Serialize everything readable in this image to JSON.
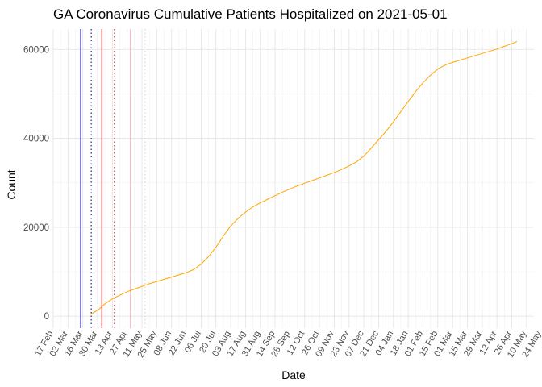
{
  "chart_data": {
    "type": "line",
    "title": "GA Coronavirus Cumulative Patients Hospitalized on 2021-05-01",
    "xlabel": "Date",
    "ylabel": "Count",
    "x_range": [
      "2020-02-17",
      "2021-05-17"
    ],
    "ylim": [
      -2700,
      64600
    ],
    "y_ticks": [
      0,
      20000,
      40000,
      60000
    ],
    "x_tick_dates": [
      "2020-02-17",
      "2020-03-02",
      "2020-03-16",
      "2020-03-30",
      "2020-04-13",
      "2020-04-27",
      "2020-05-11",
      "2020-05-25",
      "2020-06-08",
      "2020-06-22",
      "2020-07-06",
      "2020-07-20",
      "2020-08-03",
      "2020-08-17",
      "2020-08-31",
      "2020-09-14",
      "2020-09-28",
      "2020-10-12",
      "2020-10-26",
      "2020-11-09",
      "2020-11-23",
      "2020-12-07",
      "2020-12-21",
      "2021-01-04",
      "2021-01-18",
      "2021-02-01",
      "2021-02-15",
      "2021-03-01",
      "2021-03-15",
      "2021-03-29",
      "2021-04-12",
      "2021-04-26",
      "2021-05-10",
      "2021-05-24"
    ],
    "x_tick_labels": [
      "17 Feb",
      "02 Mar",
      "16 Mar",
      "30 Mar",
      "13 Apr",
      "27 Apr",
      "11 May",
      "25 May",
      "08 Jun",
      "22 Jun",
      "06 Jul",
      "20 Jul",
      "03 Aug",
      "17 Aug",
      "31 Aug",
      "14 Sep",
      "28 Sep",
      "12 Oct",
      "26 Oct",
      "09 Nov",
      "23 Nov",
      "07 Dec",
      "21 Dec",
      "04 Jan",
      "18 Jan",
      "01 Feb",
      "15 Feb",
      "01 Mar",
      "15 Mar",
      "29 Mar",
      "12 Apr",
      "26 Apr",
      "10 May",
      "24 May"
    ],
    "grid": true,
    "vlines": [
      {
        "date": "2020-03-14",
        "color": "#0000cd",
        "style": "solid"
      },
      {
        "date": "2020-03-24",
        "color": "#191970",
        "style": "dotted"
      },
      {
        "date": "2020-04-03",
        "color": "#cc0000",
        "style": "solid"
      },
      {
        "date": "2020-04-15",
        "color": "#8b0000",
        "style": "dotted"
      },
      {
        "date": "2020-04-30",
        "color": "#ffb6c1",
        "style": "solid"
      },
      {
        "date": "2020-05-14",
        "color": "#d3d3d3",
        "style": "dotted"
      }
    ],
    "series": [
      {
        "color": "#ffa500",
        "points": [
          [
            "2020-03-24",
            500
          ],
          [
            "2020-03-27",
            900
          ],
          [
            "2020-03-31",
            1500
          ],
          [
            "2020-04-03",
            2200
          ],
          [
            "2020-04-08",
            3100
          ],
          [
            "2020-04-13",
            3900
          ],
          [
            "2020-04-20",
            4700
          ],
          [
            "2020-04-27",
            5500
          ],
          [
            "2020-05-04",
            6100
          ],
          [
            "2020-05-11",
            6700
          ],
          [
            "2020-05-18",
            7300
          ],
          [
            "2020-05-25",
            7800
          ],
          [
            "2020-06-01",
            8300
          ],
          [
            "2020-06-08",
            8800
          ],
          [
            "2020-06-15",
            9300
          ],
          [
            "2020-06-22",
            9800
          ],
          [
            "2020-06-29",
            10500
          ],
          [
            "2020-07-06",
            11700
          ],
          [
            "2020-07-13",
            13400
          ],
          [
            "2020-07-20",
            15500
          ],
          [
            "2020-07-27",
            18000
          ],
          [
            "2020-08-03",
            20300
          ],
          [
            "2020-08-10",
            22000
          ],
          [
            "2020-08-17",
            23400
          ],
          [
            "2020-08-24",
            24600
          ],
          [
            "2020-08-31",
            25500
          ],
          [
            "2020-09-07",
            26300
          ],
          [
            "2020-09-14",
            27100
          ],
          [
            "2020-09-21",
            27900
          ],
          [
            "2020-09-28",
            28600
          ],
          [
            "2020-10-05",
            29300
          ],
          [
            "2020-10-12",
            29900
          ],
          [
            "2020-10-19",
            30500
          ],
          [
            "2020-10-26",
            31100
          ],
          [
            "2020-11-02",
            31700
          ],
          [
            "2020-11-09",
            32300
          ],
          [
            "2020-11-16",
            33000
          ],
          [
            "2020-11-23",
            33800
          ],
          [
            "2020-11-30",
            34700
          ],
          [
            "2020-12-07",
            36000
          ],
          [
            "2020-12-14",
            37800
          ],
          [
            "2020-12-21",
            39700
          ],
          [
            "2020-12-28",
            41600
          ],
          [
            "2021-01-04",
            43700
          ],
          [
            "2021-01-11",
            46000
          ],
          [
            "2021-01-18",
            48300
          ],
          [
            "2021-01-25",
            50500
          ],
          [
            "2021-02-01",
            52500
          ],
          [
            "2021-02-08",
            54200
          ],
          [
            "2021-02-15",
            55600
          ],
          [
            "2021-02-22",
            56500
          ],
          [
            "2021-03-01",
            57100
          ],
          [
            "2021-03-08",
            57600
          ],
          [
            "2021-03-15",
            58100
          ],
          [
            "2021-03-22",
            58600
          ],
          [
            "2021-03-29",
            59100
          ],
          [
            "2021-04-05",
            59600
          ],
          [
            "2021-04-12",
            60100
          ],
          [
            "2021-04-19",
            60700
          ],
          [
            "2021-04-26",
            61300
          ],
          [
            "2021-05-01",
            61800
          ]
        ]
      }
    ]
  }
}
